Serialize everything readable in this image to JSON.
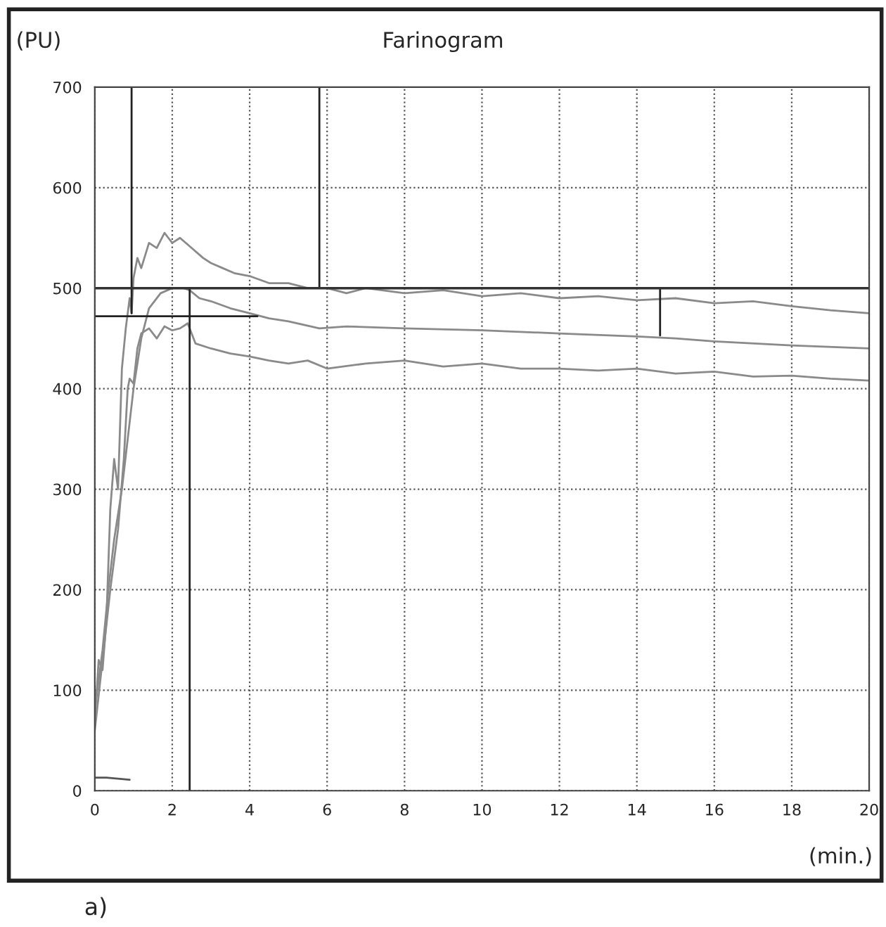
{
  "chart_data": {
    "type": "line",
    "title": "Farinogram",
    "ylabel": "(PU)",
    "xlabel": "(min.)",
    "annotations": [
      "a)"
    ],
    "xlim": [
      0,
      20
    ],
    "ylim": [
      0,
      700
    ],
    "xticks": [
      0,
      2,
      4,
      6,
      8,
      10,
      12,
      14,
      16,
      18,
      20
    ],
    "yticks": [
      0,
      100,
      200,
      300,
      400,
      500,
      600,
      700
    ],
    "grid": true,
    "legend": false,
    "marker": "none",
    "line_style": "solid",
    "ref_lines": [
      {
        "axis": "y",
        "value": 500,
        "color": "#333333"
      }
    ],
    "series": [
      {
        "color": "#8a8a8a",
        "x": [
          0,
          0.1,
          0.2,
          0.3,
          0.4,
          0.5,
          0.6,
          0.7,
          0.8,
          0.9,
          0.95,
          1.0,
          1.1,
          1.2,
          1.4,
          1.6,
          1.8,
          1.9,
          2.0,
          2.2,
          2.5,
          2.8,
          3.0,
          3.3,
          3.6,
          4.0,
          4.5,
          5.0,
          5.5,
          6.0,
          6.5,
          7.0,
          8.0,
          9.0,
          10.0,
          11.0,
          12.0,
          13.0,
          14.0,
          15.0,
          16.0,
          17.0,
          18.0,
          19.0,
          20.0
        ],
        "values": [
          70,
          130,
          120,
          170,
          280,
          330,
          300,
          420,
          460,
          490,
          475,
          510,
          530,
          520,
          545,
          540,
          555,
          550,
          545,
          550,
          540,
          530,
          525,
          520,
          515,
          512,
          505,
          505,
          500,
          500,
          495,
          500,
          495,
          498,
          492,
          495,
          490,
          492,
          488,
          490,
          485,
          487,
          482,
          478,
          475
        ]
      },
      {
        "color": "#8a8a8a",
        "x": [
          0,
          0.2,
          0.35,
          0.5,
          0.7,
          0.85,
          1.0,
          1.2,
          1.4,
          1.7,
          2.0,
          2.3,
          2.45,
          2.7,
          3.0,
          3.5,
          4.0,
          4.5,
          5.0,
          5.8,
          6.5,
          8.0,
          10.0,
          12.0,
          14.0,
          15.0,
          16.0,
          18.0,
          20.0
        ],
        "values": [
          80,
          140,
          200,
          250,
          300,
          350,
          400,
          450,
          480,
          495,
          500,
          500,
          498,
          490,
          487,
          480,
          475,
          470,
          467,
          460,
          462,
          460,
          458,
          455,
          452,
          450,
          447,
          443,
          440
        ]
      },
      {
        "color": "#8a8a8a",
        "x": [
          0,
          0.2,
          0.4,
          0.6,
          0.75,
          0.85,
          0.9,
          1.0,
          1.1,
          1.2,
          1.4,
          1.6,
          1.8,
          2.0,
          2.2,
          2.4,
          2.6,
          3.0,
          3.5,
          4.0,
          4.5,
          5.0,
          5.5,
          6.0,
          7.0,
          8.0,
          9.0,
          10.0,
          11.0,
          12.0,
          13.0,
          14.0,
          15.0,
          16.0,
          17.0,
          18.0,
          19.0,
          20.0
        ],
        "values": [
          60,
          130,
          200,
          260,
          330,
          400,
          410,
          405,
          440,
          455,
          460,
          450,
          462,
          458,
          460,
          465,
          445,
          440,
          435,
          432,
          428,
          425,
          428,
          420,
          425,
          428,
          422,
          425,
          420,
          420,
          418,
          420,
          415,
          417,
          412,
          413,
          410,
          408
        ]
      },
      {
        "color": "#555555",
        "x": [
          0,
          0.3,
          0.6,
          0.9
        ],
        "values": [
          13,
          13,
          12,
          11
        ]
      },
      {
        "color": "#222222",
        "x": [
          0.95,
          0.95
        ],
        "values": [
          475,
          700
        ]
      },
      {
        "color": "#222222",
        "x": [
          2.45,
          2.45
        ],
        "values": [
          0,
          500
        ]
      },
      {
        "color": "#222222",
        "x": [
          5.8,
          5.8
        ],
        "values": [
          500,
          700
        ]
      },
      {
        "color": "#222222",
        "x": [
          0,
          4.2
        ],
        "values": [
          472,
          472
        ]
      },
      {
        "color": "#222222",
        "x": [
          14.6,
          14.6
        ],
        "values": [
          500,
          453
        ]
      }
    ]
  }
}
